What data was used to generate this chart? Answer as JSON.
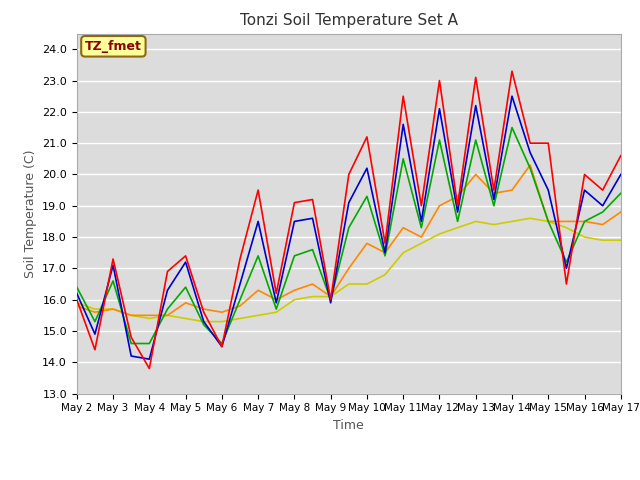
{
  "title": "Tonzi Soil Temperature Set A",
  "xlabel": "Time",
  "ylabel": "Soil Temperature (C)",
  "ylim": [
    13.0,
    24.5
  ],
  "yticks": [
    13.0,
    14.0,
    15.0,
    16.0,
    17.0,
    18.0,
    19.0,
    20.0,
    21.0,
    22.0,
    23.0,
    24.0
  ],
  "background_color": "#ffffff",
  "plot_bg_color": "#dcdcdc",
  "annotation_text": "TZ_fmet",
  "annotation_color": "#8b0000",
  "annotation_bg": "#ffff99",
  "annotation_border": "#8b6914",
  "series_colors": {
    "2cm": "#ff0000",
    "4cm": "#0000cd",
    "8cm": "#00aa00",
    "16cm": "#ff8800",
    "32cm": "#cccc00"
  },
  "series_linewidth": 1.2,
  "x_tick_days": [
    2,
    3,
    4,
    5,
    6,
    7,
    8,
    9,
    10,
    11,
    12,
    13,
    14,
    15,
    16,
    17
  ],
  "time_points": [
    0.0,
    0.5,
    1.0,
    1.5,
    2.0,
    2.5,
    3.0,
    3.5,
    4.0,
    4.5,
    5.0,
    5.5,
    6.0,
    6.5,
    7.0,
    7.5,
    8.0,
    8.5,
    9.0,
    9.5,
    10.0,
    10.5,
    11.0,
    11.5,
    12.0,
    12.5,
    13.0,
    13.5,
    14.0,
    14.5,
    15.0
  ],
  "data_2cm": [
    16.0,
    14.4,
    17.3,
    14.8,
    13.8,
    16.9,
    17.4,
    15.6,
    14.5,
    17.3,
    19.5,
    16.2,
    19.1,
    19.2,
    16.0,
    20.0,
    21.2,
    17.8,
    22.5,
    19.0,
    23.0,
    19.0,
    23.1,
    19.5,
    23.3,
    21.0,
    21.0,
    16.5,
    20.0,
    19.5,
    20.6
  ],
  "data_4cm": [
    16.2,
    14.9,
    17.1,
    14.2,
    14.1,
    16.3,
    17.2,
    15.3,
    14.5,
    16.5,
    18.5,
    15.9,
    18.5,
    18.6,
    15.9,
    19.1,
    20.2,
    17.5,
    21.6,
    18.5,
    22.1,
    18.8,
    22.2,
    19.2,
    22.5,
    20.7,
    19.5,
    17.0,
    19.5,
    19.0,
    20.0
  ],
  "data_8cm": [
    16.4,
    15.3,
    16.6,
    14.6,
    14.6,
    15.7,
    16.4,
    15.2,
    14.6,
    16.0,
    17.4,
    15.7,
    17.4,
    17.6,
    16.0,
    18.3,
    19.3,
    17.4,
    20.5,
    18.3,
    21.1,
    18.5,
    21.1,
    19.0,
    21.5,
    20.2,
    18.5,
    17.2,
    18.5,
    18.8,
    19.4
  ],
  "data_16cm": [
    15.8,
    15.6,
    15.7,
    15.5,
    15.5,
    15.5,
    15.9,
    15.7,
    15.6,
    15.8,
    16.3,
    16.0,
    16.3,
    16.5,
    16.1,
    17.0,
    17.8,
    17.5,
    18.3,
    18.0,
    19.0,
    19.3,
    20.0,
    19.4,
    19.5,
    20.3,
    18.5,
    18.5,
    18.5,
    18.4,
    18.8
  ],
  "data_32cm": [
    15.9,
    15.7,
    15.7,
    15.5,
    15.4,
    15.5,
    15.4,
    15.3,
    15.3,
    15.4,
    15.5,
    15.6,
    16.0,
    16.1,
    16.1,
    16.5,
    16.5,
    16.8,
    17.5,
    17.8,
    18.1,
    18.3,
    18.5,
    18.4,
    18.5,
    18.6,
    18.5,
    18.3,
    18.0,
    17.9,
    17.9
  ]
}
